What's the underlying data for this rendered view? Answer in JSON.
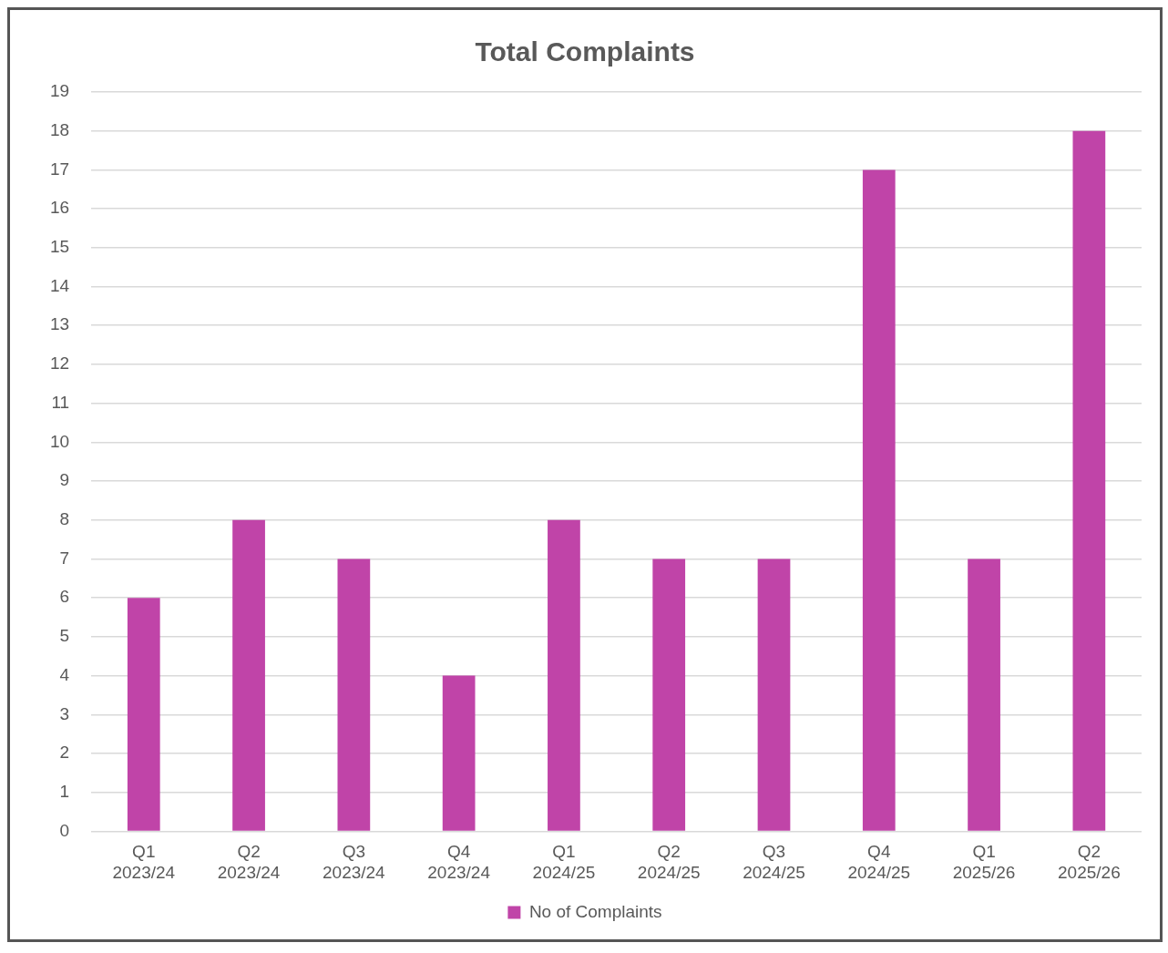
{
  "chart_data": {
    "type": "bar",
    "title": "Total Complaints",
    "categories": [
      "Q1 2023/24",
      "Q2 2023/24",
      "Q3 2023/24",
      "Q4 2023/24",
      "Q1 2024/25",
      "Q2 2024/25",
      "Q3 2024/25",
      "Q4 2024/25",
      "Q1 2025/26",
      "Q2 2025/26"
    ],
    "series": [
      {
        "name": "No of Complaints",
        "color": "#c044a8",
        "values": [
          6,
          8,
          7,
          4,
          8,
          7,
          7,
          17,
          7,
          18
        ]
      }
    ],
    "ylim": [
      0,
      19
    ],
    "yticks": [
      0,
      1,
      2,
      3,
      4,
      5,
      6,
      7,
      8,
      9,
      10,
      11,
      12,
      13,
      14,
      15,
      16,
      17,
      18,
      19
    ],
    "grid": "y",
    "legend": "bottom"
  }
}
